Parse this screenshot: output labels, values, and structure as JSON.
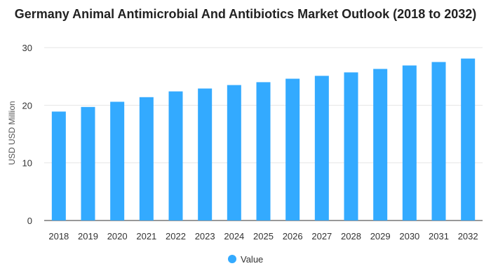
{
  "chart_data": {
    "type": "bar",
    "title": "Germany Animal Antimicrobial And Antibiotics Market Outlook (2018 to 2032)",
    "xlabel": "",
    "ylabel": "USD USD Million",
    "ylim": [
      0,
      30
    ],
    "yticks": [
      0,
      10,
      20,
      30
    ],
    "grid": true,
    "legend_position": "bottom",
    "color": "#33aaff",
    "categories": [
      "2018",
      "2019",
      "2020",
      "2021",
      "2022",
      "2023",
      "2024",
      "2025",
      "2026",
      "2027",
      "2028",
      "2029",
      "2030",
      "2031",
      "2032"
    ],
    "series": [
      {
        "name": "Value",
        "values": [
          18.9,
          19.7,
          20.6,
          21.4,
          22.4,
          22.9,
          23.5,
          24.0,
          24.6,
          25.1,
          25.7,
          26.3,
          26.9,
          27.5,
          28.1
        ]
      }
    ]
  }
}
